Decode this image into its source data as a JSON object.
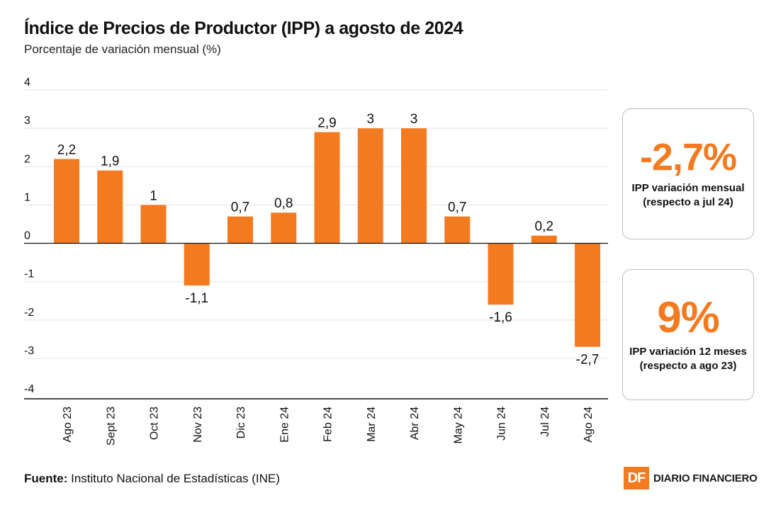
{
  "colors": {
    "accent": "#f47a20",
    "grid": "#e2e2e2",
    "axis": "#111111"
  },
  "header": {
    "title": "Índice de Precios de Productor (IPP) a agosto de 2024",
    "subtitle": "Porcentaje de variación mensual (%)"
  },
  "chart_data": {
    "type": "bar",
    "categories": [
      "Ago 23",
      "Sept 23",
      "Oct 23",
      "Nov 23",
      "Dic 23",
      "Ene 24",
      "Feb 24",
      "Mar 24",
      "Abr 24",
      "May 24",
      "Jun 24",
      "Jul 24",
      "Ago 24"
    ],
    "values": [
      2.2,
      1.9,
      1,
      -1.1,
      0.7,
      0.8,
      2.9,
      3,
      3,
      0.7,
      -1.6,
      0.2,
      -2.7
    ],
    "labels": [
      "2,2",
      "1,9",
      "1",
      "-1,1",
      "0,7",
      "0,8",
      "2,9",
      "3",
      "3",
      "0,7",
      "-1,6",
      "0,2",
      "-2,7"
    ],
    "title": "Índice de Precios de Productor (IPP) a agosto de 2024",
    "ylabel": "Porcentaje de variación mensual (%)",
    "xlabel": "",
    "ylim": [
      -4,
      4
    ],
    "yticks": [
      4,
      3,
      2,
      1,
      0,
      -1,
      -2,
      -3,
      -4
    ],
    "grid": true
  },
  "cards": [
    {
      "value": "-2,7%",
      "label_line1": "IPP variación mensual",
      "label_line2": "(respecto a jul 24)"
    },
    {
      "value": "9%",
      "label_line1": "IPP variación 12 meses",
      "label_line2": "(respecto a ago 23)"
    }
  ],
  "footer": {
    "source_label": "Fuente:",
    "source_text": " Instituto Nacional de Estadísticas (INE)",
    "logo_mark": "DF",
    "logo_text": "DIARIO FINANCIERO"
  }
}
